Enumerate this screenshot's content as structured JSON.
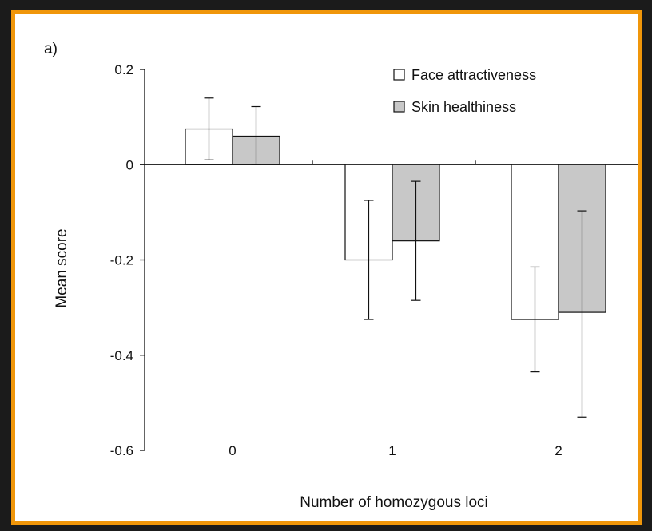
{
  "colors": {
    "frame_border": "#f0960a",
    "background": "#1b1b1b",
    "face_fill": "#ffffff",
    "skin_fill": "#c8c8c8",
    "ink": "#111111"
  },
  "chart_data": {
    "type": "bar",
    "panel_label": "a)",
    "xlabel": "Number of homozygous loci",
    "ylabel": "Mean score",
    "categories": [
      "0",
      "1",
      "2"
    ],
    "ylim": [
      -0.6,
      0.2
    ],
    "yticks": [
      0.2,
      0,
      -0.2,
      -0.4,
      -0.6
    ],
    "ytick_labels": [
      "0.2",
      "0",
      "-0.2",
      "-0.4",
      "-0.6"
    ],
    "grid": false,
    "legend_position": "top-right",
    "series": [
      {
        "name": "Face attractiveness",
        "values": [
          0.075,
          -0.2,
          -0.325
        ],
        "error_low": [
          0.01,
          -0.325,
          -0.435
        ],
        "error_high": [
          0.14,
          -0.075,
          -0.215
        ],
        "fill": "#ffffff"
      },
      {
        "name": "Skin healthiness",
        "values": [
          0.06,
          -0.16,
          -0.31
        ],
        "error_low": [
          0.0,
          -0.285,
          -0.53
        ],
        "error_high": [
          0.122,
          -0.035,
          -0.097
        ],
        "fill": "#c8c8c8"
      }
    ]
  }
}
